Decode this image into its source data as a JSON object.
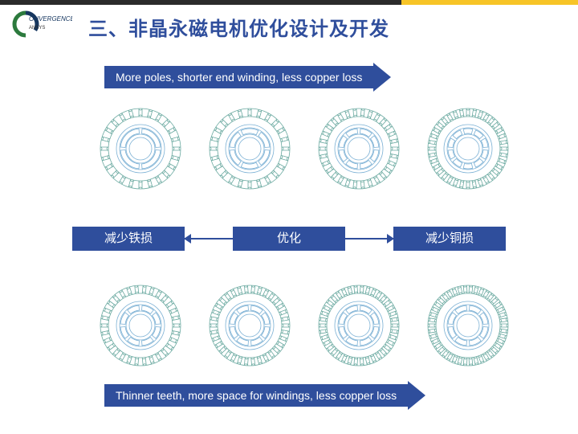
{
  "logo": {
    "text_top": "ONVERGENCE",
    "text_bottom": "ANSYS"
  },
  "title": "三、非晶永磁电机优化设计及开发",
  "arrow_top": {
    "label": "More poles, shorter end winding, less copper loss"
  },
  "arrow_bottom": {
    "label": "Thinner teeth, more space for windings, less copper loss"
  },
  "mid": {
    "left": "减少铁损",
    "center": "优化",
    "right": "减少铜损"
  },
  "motor_rows": {
    "row1": [
      {
        "slots": 24,
        "rotor_segments": 4
      },
      {
        "slots": 24,
        "rotor_segments": 6
      },
      {
        "slots": 30,
        "rotor_segments": 8
      },
      {
        "slots": 36,
        "rotor_segments": 10
      }
    ],
    "row2": [
      {
        "slots": 30,
        "rotor_segments": 8
      },
      {
        "slots": 34,
        "rotor_segments": 8
      },
      {
        "slots": 38,
        "rotor_segments": 8
      },
      {
        "slots": 42,
        "rotor_segments": 8
      }
    ]
  },
  "style": {
    "brand_blue": "#2f4e9c",
    "accent_yellow": "#f7c427",
    "motor_stroke": "#6aa9a0",
    "motor_stroke_inner": "#7bb0d4",
    "motor_stroke_width": 0.8,
    "title_fontsize": 24,
    "label_fontsize": 15,
    "arrow_fontsize": 14,
    "background": "#ffffff"
  }
}
